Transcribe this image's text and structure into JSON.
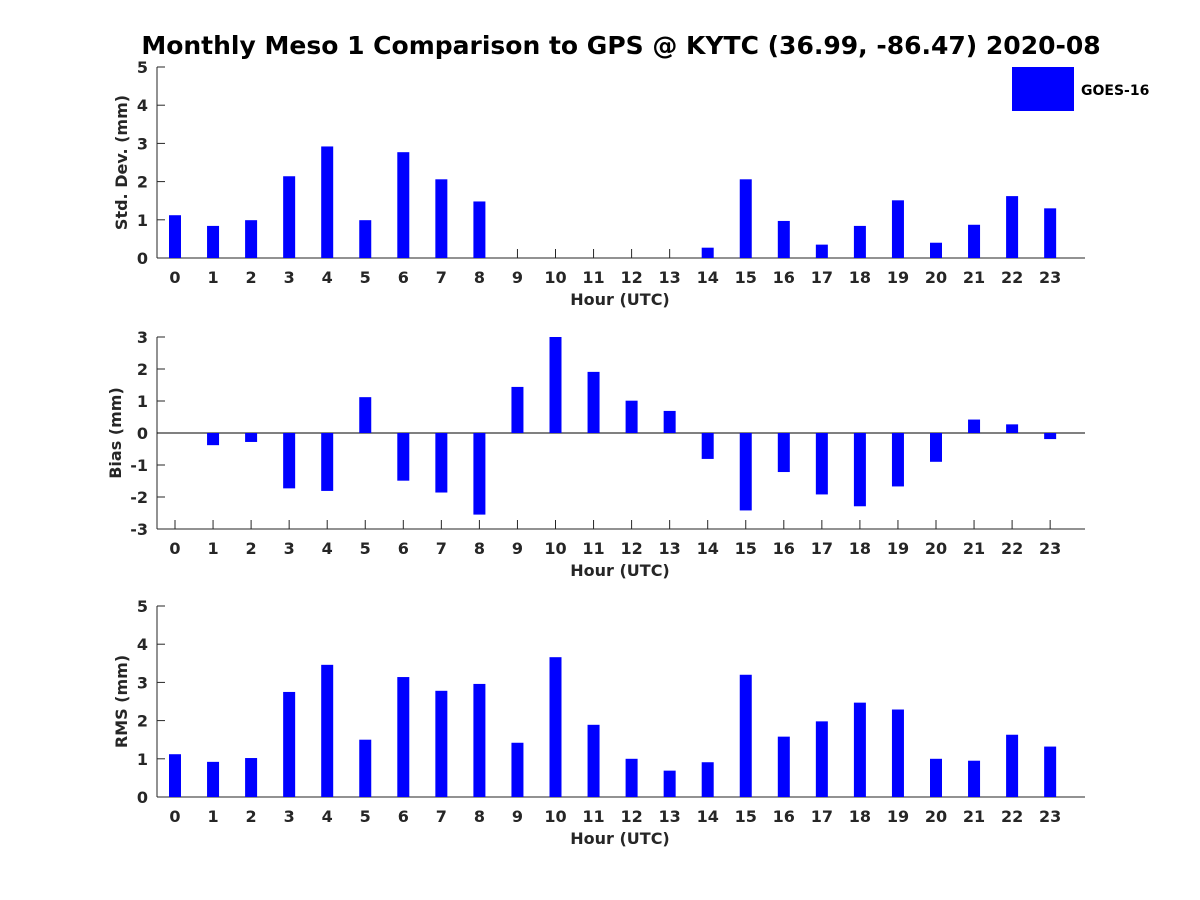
{
  "title": "Monthly Meso 1 Comparison to GPS @ KYTC (36.99, -86.47) 2020-08",
  "legend": {
    "label": "GOES-16",
    "color": "#0000ff",
    "placement": "top-right"
  },
  "chart_data": [
    {
      "type": "bar",
      "name": "std_dev",
      "xlabel": "Hour (UTC)",
      "ylabel": "Std. Dev. (mm)",
      "ylim": [
        0,
        5
      ],
      "yticks": [
        0,
        1,
        2,
        3,
        4,
        5
      ],
      "categories": [
        "0",
        "1",
        "2",
        "3",
        "4",
        "5",
        "6",
        "7",
        "8",
        "9",
        "10",
        "11",
        "12",
        "13",
        "14",
        "15",
        "16",
        "17",
        "18",
        "19",
        "20",
        "21",
        "22",
        "23"
      ],
      "series": [
        {
          "name": "GOES-16",
          "color": "#0000ff",
          "values": [
            1.12,
            0.84,
            0.99,
            2.14,
            2.92,
            0.99,
            2.77,
            2.06,
            1.48,
            0,
            0,
            0,
            0,
            0,
            0.27,
            2.06,
            0.97,
            0.35,
            0.84,
            1.51,
            0.4,
            0.87,
            1.62,
            1.3
          ]
        }
      ],
      "grid": false
    },
    {
      "type": "bar",
      "name": "bias",
      "xlabel": "Hour (UTC)",
      "ylabel": "Bias (mm)",
      "ylim": [
        -3,
        3
      ],
      "yticks": [
        -3,
        -2,
        -1,
        0,
        1,
        2,
        3
      ],
      "categories": [
        "0",
        "1",
        "2",
        "3",
        "4",
        "5",
        "6",
        "7",
        "8",
        "9",
        "10",
        "11",
        "12",
        "13",
        "14",
        "15",
        "16",
        "17",
        "18",
        "19",
        "20",
        "21",
        "22",
        "23"
      ],
      "series": [
        {
          "name": "GOES-16",
          "color": "#0000ff",
          "values": [
            0,
            -0.38,
            -0.28,
            -1.73,
            -1.81,
            1.12,
            -1.49,
            -1.86,
            -2.55,
            1.44,
            3.0,
            1.91,
            1.01,
            0.69,
            -0.81,
            -2.42,
            -1.22,
            -1.92,
            -2.29,
            -1.67,
            -0.9,
            0.42,
            0.27,
            -0.19
          ]
        }
      ],
      "grid": false,
      "zero_line": true
    },
    {
      "type": "bar",
      "name": "rms",
      "xlabel": "Hour (UTC)",
      "ylabel": "RMS (mm)",
      "ylim": [
        0,
        5
      ],
      "yticks": [
        0,
        1,
        2,
        3,
        4,
        5
      ],
      "categories": [
        "0",
        "1",
        "2",
        "3",
        "4",
        "5",
        "6",
        "7",
        "8",
        "9",
        "10",
        "11",
        "12",
        "13",
        "14",
        "15",
        "16",
        "17",
        "18",
        "19",
        "20",
        "21",
        "22",
        "23"
      ],
      "series": [
        {
          "name": "GOES-16",
          "color": "#0000ff",
          "values": [
            1.12,
            0.92,
            1.02,
            2.75,
            3.46,
            1.5,
            3.14,
            2.78,
            2.96,
            1.42,
            3.66,
            1.89,
            1.0,
            0.69,
            0.91,
            3.2,
            1.58,
            1.98,
            2.47,
            2.29,
            1.0,
            0.95,
            1.63,
            1.32
          ]
        }
      ],
      "grid": false
    }
  ]
}
